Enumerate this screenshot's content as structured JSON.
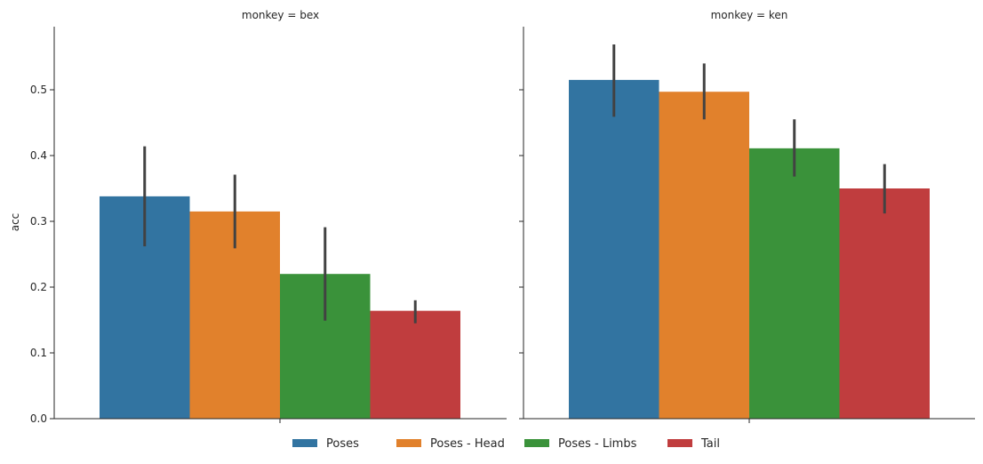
{
  "chart_data": {
    "type": "bar",
    "ylabel": "acc",
    "ylim": [
      0,
      0.6
    ],
    "yticks": [
      "0.0",
      "0.1",
      "0.2",
      "0.3",
      "0.4",
      "0.5"
    ],
    "legend_position": "bottom-center",
    "series": [
      {
        "name": "Poses",
        "color": "#3274a1"
      },
      {
        "name": "Poses - Head",
        "color": "#e1812c"
      },
      {
        "name": "Poses - Limbs",
        "color": "#3a923a"
      },
      {
        "name": "Tail",
        "color": "#c03d3e"
      }
    ],
    "panels": [
      {
        "title": "monkey = bex",
        "values": [
          0.338,
          0.315,
          0.22,
          0.164
        ],
        "ci_low": [
          0.262,
          0.259,
          0.149,
          0.145
        ],
        "ci_high": [
          0.414,
          0.371,
          0.291,
          0.18
        ]
      },
      {
        "title": "monkey = ken",
        "values": [
          0.515,
          0.497,
          0.411,
          0.35
        ],
        "ci_low": [
          0.459,
          0.455,
          0.368,
          0.312
        ],
        "ci_high": [
          0.569,
          0.54,
          0.455,
          0.387
        ]
      }
    ]
  }
}
